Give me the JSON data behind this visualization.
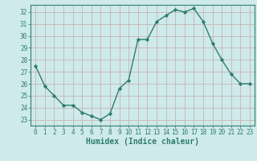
{
  "x": [
    0,
    1,
    2,
    3,
    4,
    5,
    6,
    7,
    8,
    9,
    10,
    11,
    12,
    13,
    14,
    15,
    16,
    17,
    18,
    19,
    20,
    21,
    22,
    23
  ],
  "y": [
    27.5,
    25.8,
    25.0,
    24.2,
    24.2,
    23.6,
    23.3,
    23.0,
    23.5,
    25.6,
    26.3,
    29.7,
    29.7,
    31.2,
    31.7,
    32.2,
    32.0,
    32.3,
    31.2,
    29.4,
    28.0,
    26.8,
    26.0,
    26.0
  ],
  "line_color": "#2e7d6e",
  "marker": "D",
  "marker_size": 2.2,
  "bg_color": "#ceeaea",
  "grid_color": "#b8d8d4",
  "xlabel": "Humidex (Indice chaleur)",
  "xlim": [
    -0.5,
    23.5
  ],
  "ylim": [
    22.5,
    32.6
  ],
  "yticks": [
    23,
    24,
    25,
    26,
    27,
    28,
    29,
    30,
    31,
    32
  ],
  "xticks": [
    0,
    1,
    2,
    3,
    4,
    5,
    6,
    7,
    8,
    9,
    10,
    11,
    12,
    13,
    14,
    15,
    16,
    17,
    18,
    19,
    20,
    21,
    22,
    23
  ],
  "tick_fontsize": 5.5,
  "xlabel_fontsize": 7,
  "line_width": 1.0
}
